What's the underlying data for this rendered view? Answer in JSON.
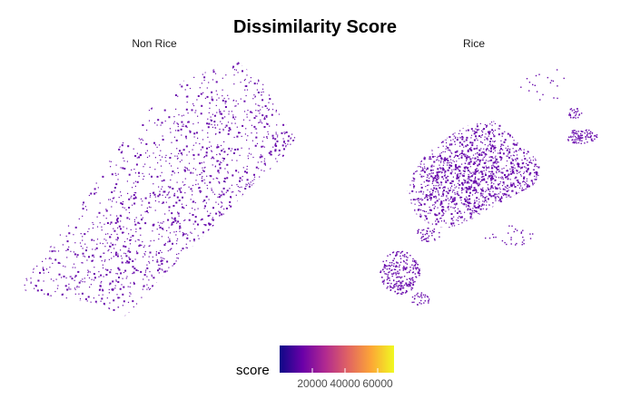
{
  "chart_data": {
    "type": "map",
    "title": "Dissimilarity Score",
    "facets": [
      {
        "label": "Non Rice"
      },
      {
        "label": "Rice"
      }
    ],
    "legend": {
      "title": "score",
      "type": "continuous-colorbar",
      "position": "bottom",
      "palette": "plasma",
      "colors": [
        "#0d0887",
        "#6a00a8",
        "#b12a90",
        "#e16462",
        "#fca636",
        "#f0f921"
      ],
      "range": [
        0,
        70000
      ],
      "ticks": [
        20000,
        40000,
        60000
      ],
      "tick_labels": [
        "20000",
        "40000",
        "60000"
      ]
    },
    "point_color": "#6a0dad",
    "grid": false
  }
}
